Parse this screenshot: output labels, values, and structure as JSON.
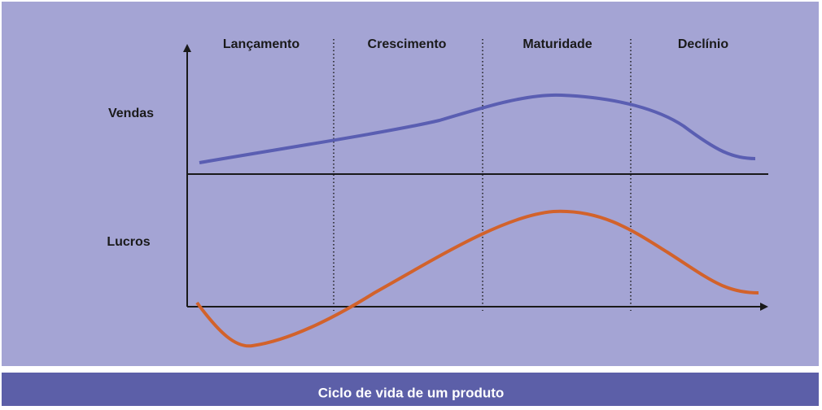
{
  "stages": [
    "Lançamento",
    "Crescimento",
    "Maturidade",
    "Declínio"
  ],
  "rows": [
    "Vendas",
    "Lucros"
  ],
  "caption": "Ciclo de vida de um produto"
}
